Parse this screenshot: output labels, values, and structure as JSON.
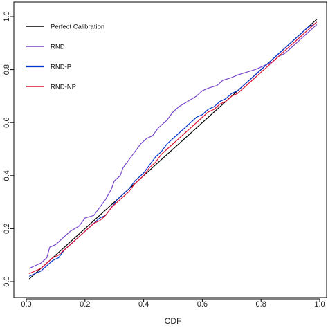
{
  "chart_data": {
    "type": "line",
    "title": "",
    "xlabel": "CDF",
    "ylabel": "",
    "xlim": [
      0.0,
      1.0
    ],
    "ylim": [
      0.0,
      1.0
    ],
    "x_ticks": [
      "0.0",
      "0.2",
      "0.4",
      "0.6",
      "0.8",
      "1.0"
    ],
    "y_ticks": [
      "0.0",
      "0.2",
      "0.4",
      "0.6",
      "0.8",
      "1.0"
    ],
    "grid": false,
    "legend_position": "top-left",
    "series": [
      {
        "name": "Perfect Calibration",
        "color": "#000000",
        "width": 1.2,
        "x": [
          0.01,
          0.99
        ],
        "y": [
          0.01,
          0.99
        ]
      },
      {
        "name": "RND",
        "color": "#7744cc",
        "width": 1.2,
        "x": [
          0.01,
          0.03,
          0.05,
          0.07,
          0.08,
          0.1,
          0.12,
          0.15,
          0.18,
          0.2,
          0.23,
          0.25,
          0.27,
          0.29,
          0.3,
          0.32,
          0.33,
          0.35,
          0.37,
          0.39,
          0.41,
          0.43,
          0.45,
          0.48,
          0.5,
          0.52,
          0.55,
          0.58,
          0.6,
          0.62,
          0.65,
          0.67,
          0.7,
          0.72,
          0.75,
          0.78,
          0.8,
          0.82,
          0.84,
          0.86,
          0.88,
          0.9,
          0.92,
          0.94,
          0.96,
          0.98,
          0.99
        ],
        "y": [
          0.05,
          0.06,
          0.07,
          0.09,
          0.13,
          0.14,
          0.16,
          0.19,
          0.21,
          0.24,
          0.25,
          0.28,
          0.31,
          0.35,
          0.38,
          0.4,
          0.43,
          0.46,
          0.49,
          0.52,
          0.54,
          0.55,
          0.58,
          0.61,
          0.64,
          0.66,
          0.68,
          0.7,
          0.72,
          0.73,
          0.74,
          0.76,
          0.77,
          0.78,
          0.79,
          0.8,
          0.81,
          0.82,
          0.83,
          0.85,
          0.86,
          0.88,
          0.9,
          0.92,
          0.94,
          0.96,
          0.97
        ]
      },
      {
        "name": "RND-P",
        "color": "#0033cc",
        "width": 1.2,
        "x": [
          0.01,
          0.03,
          0.05,
          0.07,
          0.09,
          0.11,
          0.13,
          0.15,
          0.17,
          0.19,
          0.21,
          0.23,
          0.25,
          0.27,
          0.29,
          0.31,
          0.33,
          0.35,
          0.37,
          0.4,
          0.42,
          0.44,
          0.46,
          0.48,
          0.5,
          0.52,
          0.54,
          0.56,
          0.58,
          0.6,
          0.62,
          0.64,
          0.66,
          0.68,
          0.7,
          0.72,
          0.74,
          0.76,
          0.78,
          0.8,
          0.82,
          0.84,
          0.86,
          0.88,
          0.9,
          0.92,
          0.94,
          0.96,
          0.98,
          0.99
        ],
        "y": [
          0.02,
          0.03,
          0.04,
          0.06,
          0.08,
          0.09,
          0.12,
          0.14,
          0.16,
          0.18,
          0.2,
          0.22,
          0.24,
          0.25,
          0.28,
          0.31,
          0.33,
          0.35,
          0.38,
          0.41,
          0.44,
          0.47,
          0.49,
          0.52,
          0.54,
          0.56,
          0.58,
          0.6,
          0.62,
          0.63,
          0.65,
          0.66,
          0.68,
          0.69,
          0.71,
          0.72,
          0.74,
          0.76,
          0.78,
          0.8,
          0.82,
          0.84,
          0.86,
          0.88,
          0.9,
          0.92,
          0.94,
          0.96,
          0.97,
          0.98
        ]
      },
      {
        "name": "RND-NP",
        "color": "#dd1133",
        "width": 1.2,
        "x": [
          0.01,
          0.03,
          0.05,
          0.07,
          0.09,
          0.11,
          0.13,
          0.15,
          0.17,
          0.19,
          0.21,
          0.23,
          0.25,
          0.27,
          0.29,
          0.31,
          0.33,
          0.35,
          0.37,
          0.4,
          0.42,
          0.44,
          0.46,
          0.48,
          0.5,
          0.52,
          0.54,
          0.56,
          0.58,
          0.6,
          0.62,
          0.64,
          0.66,
          0.68,
          0.7,
          0.72,
          0.74,
          0.76,
          0.78,
          0.8,
          0.82,
          0.84,
          0.86,
          0.88,
          0.9,
          0.92,
          0.94,
          0.96,
          0.98,
          0.99
        ],
        "y": [
          0.03,
          0.04,
          0.05,
          0.07,
          0.09,
          0.1,
          0.12,
          0.14,
          0.16,
          0.18,
          0.2,
          0.22,
          0.23,
          0.25,
          0.28,
          0.3,
          0.32,
          0.34,
          0.37,
          0.4,
          0.43,
          0.45,
          0.48,
          0.5,
          0.52,
          0.54,
          0.56,
          0.58,
          0.6,
          0.62,
          0.64,
          0.65,
          0.67,
          0.68,
          0.7,
          0.71,
          0.73,
          0.75,
          0.77,
          0.79,
          0.81,
          0.83,
          0.85,
          0.87,
          0.89,
          0.91,
          0.93,
          0.95,
          0.97,
          0.98
        ]
      }
    ]
  }
}
